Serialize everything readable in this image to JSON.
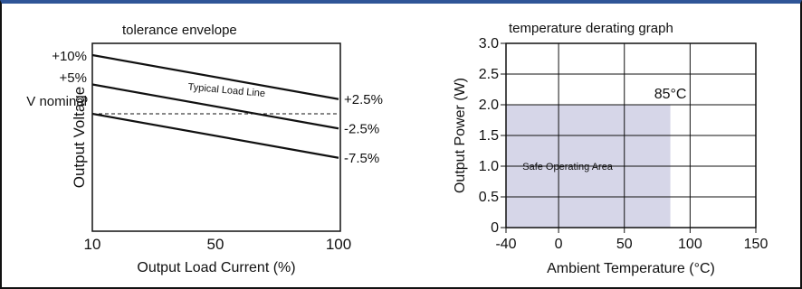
{
  "chart_data": [
    {
      "type": "line",
      "title": "tolerance envelope",
      "xlabel": "Output Load Current (%)",
      "ylabel": "Output Voltage",
      "x_ticks": [
        "10",
        "50",
        "100"
      ],
      "xlim": [
        10,
        100
      ],
      "y_ticks": [
        "+10%",
        "+5%",
        "V nominal"
      ],
      "ylim": [
        -20,
        12
      ],
      "grid": false,
      "series": [
        {
          "name": "",
          "x": [
            10,
            100
          ],
          "y": [
            10,
            2.5
          ],
          "end_label": "+2.5%"
        },
        {
          "name": "Typical Load Line",
          "x": [
            10,
            100
          ],
          "y": [
            0,
            0
          ],
          "style": "dashed"
        },
        {
          "name": "",
          "x": [
            10,
            100
          ],
          "y": [
            0,
            -7.5
          ],
          "end_label": "-7.5%"
        },
        {
          "name": "",
          "x": [
            10,
            100
          ],
          "y": [
            5,
            -2.5
          ],
          "end_label": "-2.5%"
        }
      ],
      "annotations": [
        {
          "text": "Typical Load Line",
          "x": 59,
          "y": 3.5
        }
      ]
    },
    {
      "type": "area",
      "title": "temperature derating graph",
      "xlabel": "Ambient Temperature (°C)",
      "ylabel": "Output Power (W)",
      "x_ticks": [
        -40,
        0,
        50,
        100,
        150
      ],
      "xlim": [
        -40,
        150
      ],
      "y_ticks": [
        "0",
        "0.5",
        "1.0",
        "1.5",
        "2.0",
        "2.5",
        "3.0"
      ],
      "ylim": [
        0,
        3
      ],
      "grid": true,
      "series": [
        {
          "name": "Safe Operating Area",
          "x": [
            -40,
            85,
            85
          ],
          "y": [
            2,
            2,
            0
          ],
          "fill": "#d6d6e8"
        }
      ],
      "annotations": [
        {
          "text": "85°C",
          "x": 85,
          "y": 2.0
        },
        {
          "text": "Safe Operating Area",
          "x": 0,
          "y": 1.0
        }
      ]
    }
  ]
}
